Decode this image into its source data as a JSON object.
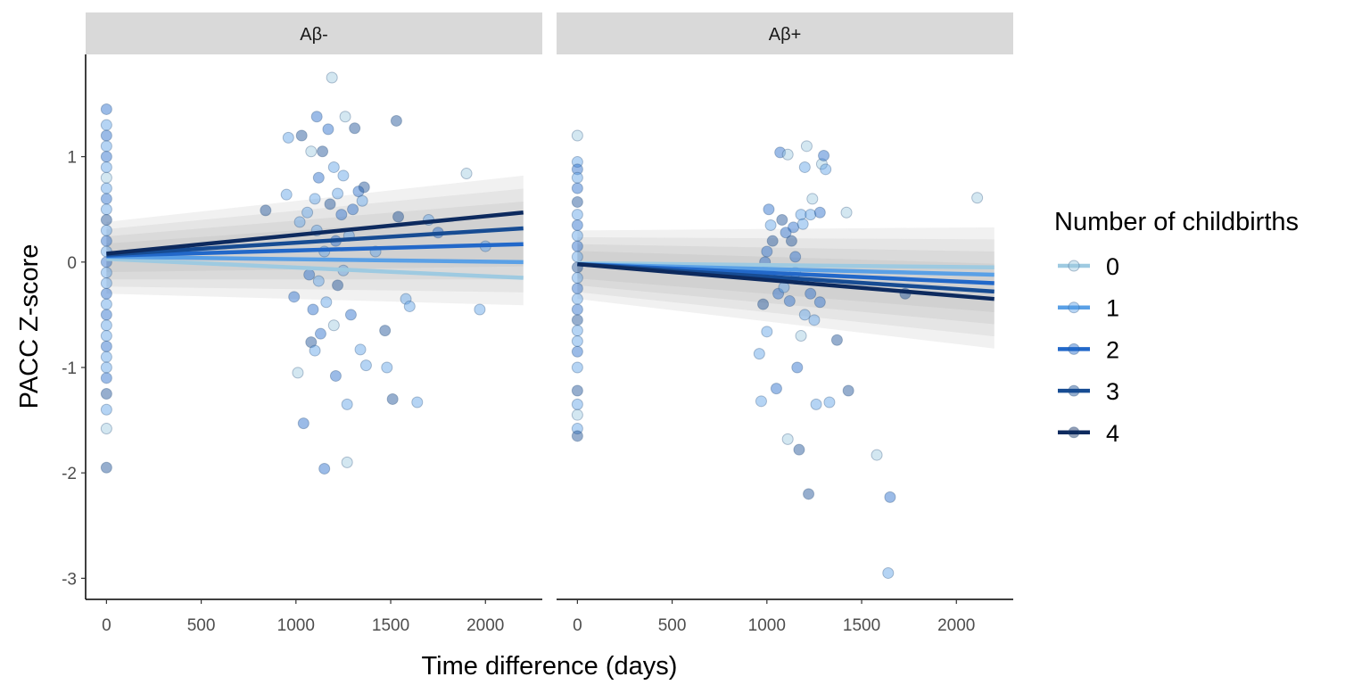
{
  "chart_data": {
    "type": "scatter",
    "xlabel": "Time difference (days)",
    "ylabel": "PACC Z-score",
    "xlim": [
      -110,
      2300
    ],
    "ylim": [
      -3.2,
      1.97
    ],
    "x_ticks": [
      0,
      500,
      1000,
      1500,
      2000
    ],
    "x_tick_labels": [
      "0",
      "500",
      "1000",
      "1500",
      "2000"
    ],
    "y_ticks": [
      -3,
      -2,
      -1,
      0,
      1
    ],
    "y_tick_labels": [
      "-3",
      "-2",
      "-1",
      "0",
      "1"
    ],
    "grid": false,
    "legend": {
      "title": "Number of childbirths",
      "position": "right",
      "entries": [
        "0",
        "1",
        "2",
        "3",
        "4"
      ]
    },
    "colors": [
      "#9ecae1",
      "#5aa0e6",
      "#2268c9",
      "#174c93",
      "#0d2a5e"
    ],
    "panels": [
      {
        "label": "Aβ-",
        "lines": [
          {
            "group": "0",
            "x": [
              0,
              2200
            ],
            "y": [
              0.03,
              -0.15
            ]
          },
          {
            "group": "1",
            "x": [
              0,
              2200
            ],
            "y": [
              0.05,
              0.0
            ]
          },
          {
            "group": "2",
            "x": [
              0,
              2200
            ],
            "y": [
              0.06,
              0.17
            ]
          },
          {
            "group": "3",
            "x": [
              0,
              2200
            ],
            "y": [
              0.07,
              0.32
            ]
          },
          {
            "group": "4",
            "x": [
              0,
              2200
            ],
            "y": [
              0.08,
              0.47
            ]
          }
        ],
        "ribbon": {
          "x": [
            0,
            2200
          ],
          "upper": [
            0.38,
            0.82
          ],
          "lower": [
            -0.3,
            -0.41
          ]
        },
        "points": [
          {
            "x": 0,
            "y": 1.45,
            "g": 2
          },
          {
            "x": 0,
            "y": 1.3,
            "g": 1
          },
          {
            "x": 0,
            "y": 1.2,
            "g": 2
          },
          {
            "x": 0,
            "y": 1.1,
            "g": 1
          },
          {
            "x": 0,
            "y": 1.0,
            "g": 2
          },
          {
            "x": 0,
            "y": 0.9,
            "g": 1
          },
          {
            "x": 0,
            "y": 0.8,
            "g": 0
          },
          {
            "x": 0,
            "y": 0.7,
            "g": 1
          },
          {
            "x": 0,
            "y": 0.6,
            "g": 2
          },
          {
            "x": 0,
            "y": 0.5,
            "g": 1
          },
          {
            "x": 0,
            "y": 0.4,
            "g": 3
          },
          {
            "x": 0,
            "y": 0.3,
            "g": 1
          },
          {
            "x": 0,
            "y": 0.2,
            "g": 2
          },
          {
            "x": 0,
            "y": 0.1,
            "g": 1
          },
          {
            "x": 0,
            "y": 0.0,
            "g": 2
          },
          {
            "x": 0,
            "y": -0.1,
            "g": 1
          },
          {
            "x": 0,
            "y": -0.2,
            "g": 1
          },
          {
            "x": 0,
            "y": -0.3,
            "g": 2
          },
          {
            "x": 0,
            "y": -0.4,
            "g": 1
          },
          {
            "x": 0,
            "y": -0.5,
            "g": 2
          },
          {
            "x": 0,
            "y": -0.6,
            "g": 1
          },
          {
            "x": 0,
            "y": -0.7,
            "g": 1
          },
          {
            "x": 0,
            "y": -0.8,
            "g": 2
          },
          {
            "x": 0,
            "y": -0.9,
            "g": 1
          },
          {
            "x": 0,
            "y": -1.0,
            "g": 1
          },
          {
            "x": 0,
            "y": -1.1,
            "g": 2
          },
          {
            "x": 0,
            "y": -1.25,
            "g": 3
          },
          {
            "x": 0,
            "y": -1.4,
            "g": 1
          },
          {
            "x": 0,
            "y": -1.58,
            "g": 0
          },
          {
            "x": 0,
            "y": -1.95,
            "g": 3
          },
          {
            "x": 840,
            "y": 0.49,
            "g": 3
          },
          {
            "x": 950,
            "y": 0.64,
            "g": 1
          },
          {
            "x": 960,
            "y": 1.18,
            "g": 1
          },
          {
            "x": 990,
            "y": -0.33,
            "g": 2
          },
          {
            "x": 1010,
            "y": -1.05,
            "g": 0
          },
          {
            "x": 1020,
            "y": 0.38,
            "g": 1
          },
          {
            "x": 1030,
            "y": 1.2,
            "g": 3
          },
          {
            "x": 1040,
            "y": -1.53,
            "g": 2
          },
          {
            "x": 1060,
            "y": 0.47,
            "g": 1
          },
          {
            "x": 1070,
            "y": -0.12,
            "g": 2
          },
          {
            "x": 1080,
            "y": 1.05,
            "g": 0
          },
          {
            "x": 1080,
            "y": -0.76,
            "g": 3
          },
          {
            "x": 1090,
            "y": -0.45,
            "g": 2
          },
          {
            "x": 1100,
            "y": 0.6,
            "g": 1
          },
          {
            "x": 1100,
            "y": -0.84,
            "g": 1
          },
          {
            "x": 1110,
            "y": 1.38,
            "g": 2
          },
          {
            "x": 1110,
            "y": 0.3,
            "g": 1
          },
          {
            "x": 1120,
            "y": 0.8,
            "g": 2
          },
          {
            "x": 1120,
            "y": -0.18,
            "g": 1
          },
          {
            "x": 1130,
            "y": -0.68,
            "g": 2
          },
          {
            "x": 1140,
            "y": 1.05,
            "g": 3
          },
          {
            "x": 1150,
            "y": -1.96,
            "g": 2
          },
          {
            "x": 1150,
            "y": 0.1,
            "g": 1
          },
          {
            "x": 1160,
            "y": -0.38,
            "g": 1
          },
          {
            "x": 1170,
            "y": 1.26,
            "g": 2
          },
          {
            "x": 1180,
            "y": 0.55,
            "g": 3
          },
          {
            "x": 1190,
            "y": 1.75,
            "g": 0
          },
          {
            "x": 1200,
            "y": 0.9,
            "g": 1
          },
          {
            "x": 1200,
            "y": -0.6,
            "g": 0
          },
          {
            "x": 1210,
            "y": -1.08,
            "g": 2
          },
          {
            "x": 1210,
            "y": 0.2,
            "g": 2
          },
          {
            "x": 1220,
            "y": 0.65,
            "g": 1
          },
          {
            "x": 1220,
            "y": -0.22,
            "g": 3
          },
          {
            "x": 1240,
            "y": 0.45,
            "g": 2
          },
          {
            "x": 1250,
            "y": 0.82,
            "g": 1
          },
          {
            "x": 1250,
            "y": -0.08,
            "g": 1
          },
          {
            "x": 1260,
            "y": 1.38,
            "g": 0
          },
          {
            "x": 1270,
            "y": -1.35,
            "g": 1
          },
          {
            "x": 1270,
            "y": -1.9,
            "g": 0
          },
          {
            "x": 1280,
            "y": 0.25,
            "g": 1
          },
          {
            "x": 1290,
            "y": -0.5,
            "g": 2
          },
          {
            "x": 1300,
            "y": 0.5,
            "g": 2
          },
          {
            "x": 1310,
            "y": 1.27,
            "g": 3
          },
          {
            "x": 1330,
            "y": 0.67,
            "g": 2
          },
          {
            "x": 1340,
            "y": -0.83,
            "g": 1
          },
          {
            "x": 1350,
            "y": 0.58,
            "g": 1
          },
          {
            "x": 1360,
            "y": 0.71,
            "g": 3
          },
          {
            "x": 1370,
            "y": -0.98,
            "g": 1
          },
          {
            "x": 1420,
            "y": 0.1,
            "g": 1
          },
          {
            "x": 1470,
            "y": -0.65,
            "g": 3
          },
          {
            "x": 1480,
            "y": -1.0,
            "g": 1
          },
          {
            "x": 1510,
            "y": -1.3,
            "g": 3
          },
          {
            "x": 1530,
            "y": 1.34,
            "g": 3
          },
          {
            "x": 1540,
            "y": 0.43,
            "g": 3
          },
          {
            "x": 1580,
            "y": -0.35,
            "g": 1
          },
          {
            "x": 1600,
            "y": -0.42,
            "g": 1
          },
          {
            "x": 1640,
            "y": -1.33,
            "g": 1
          },
          {
            "x": 1700,
            "y": 0.4,
            "g": 1
          },
          {
            "x": 1750,
            "y": 0.28,
            "g": 2
          },
          {
            "x": 1900,
            "y": 0.84,
            "g": 0
          },
          {
            "x": 1970,
            "y": -0.45,
            "g": 1
          },
          {
            "x": 2000,
            "y": 0.15,
            "g": 1
          }
        ]
      },
      {
        "label": "Aβ+",
        "lines": [
          {
            "group": "0",
            "x": [
              0,
              2200
            ],
            "y": [
              -0.01,
              -0.05
            ]
          },
          {
            "group": "1",
            "x": [
              0,
              2200
            ],
            "y": [
              -0.02,
              -0.12
            ]
          },
          {
            "group": "2",
            "x": [
              0,
              2200
            ],
            "y": [
              -0.02,
              -0.2
            ]
          },
          {
            "group": "3",
            "x": [
              0,
              2200
            ],
            "y": [
              -0.02,
              -0.28
            ]
          },
          {
            "group": "4",
            "x": [
              0,
              2200
            ],
            "y": [
              -0.02,
              -0.35
            ]
          }
        ],
        "ribbon": {
          "x": [
            0,
            2200
          ],
          "upper": [
            0.3,
            0.33
          ],
          "lower": [
            -0.35,
            -0.82
          ]
        },
        "points": [
          {
            "x": 0,
            "y": 1.2,
            "g": 0
          },
          {
            "x": 0,
            "y": 0.95,
            "g": 1
          },
          {
            "x": 0,
            "y": 0.88,
            "g": 2
          },
          {
            "x": 0,
            "y": 0.8,
            "g": 1
          },
          {
            "x": 0,
            "y": 0.7,
            "g": 2
          },
          {
            "x": 0,
            "y": 0.57,
            "g": 3
          },
          {
            "x": 0,
            "y": 0.45,
            "g": 1
          },
          {
            "x": 0,
            "y": 0.35,
            "g": 2
          },
          {
            "x": 0,
            "y": 0.25,
            "g": 1
          },
          {
            "x": 0,
            "y": 0.15,
            "g": 2
          },
          {
            "x": 0,
            "y": 0.05,
            "g": 1
          },
          {
            "x": 0,
            "y": -0.05,
            "g": 3
          },
          {
            "x": 0,
            "y": -0.15,
            "g": 1
          },
          {
            "x": 0,
            "y": -0.25,
            "g": 2
          },
          {
            "x": 0,
            "y": -0.35,
            "g": 1
          },
          {
            "x": 0,
            "y": -0.45,
            "g": 2
          },
          {
            "x": 0,
            "y": -0.55,
            "g": 3
          },
          {
            "x": 0,
            "y": -0.65,
            "g": 1
          },
          {
            "x": 0,
            "y": -0.75,
            "g": 1
          },
          {
            "x": 0,
            "y": -0.85,
            "g": 2
          },
          {
            "x": 0,
            "y": -1.0,
            "g": 1
          },
          {
            "x": 0,
            "y": -1.22,
            "g": 3
          },
          {
            "x": 0,
            "y": -1.35,
            "g": 1
          },
          {
            "x": 0,
            "y": -1.45,
            "g": 0
          },
          {
            "x": 0,
            "y": -1.58,
            "g": 1
          },
          {
            "x": 0,
            "y": -1.65,
            "g": 3
          },
          {
            "x": 960,
            "y": -0.87,
            "g": 1
          },
          {
            "x": 970,
            "y": -1.32,
            "g": 1
          },
          {
            "x": 980,
            "y": -0.4,
            "g": 3
          },
          {
            "x": 990,
            "y": 0.0,
            "g": 2
          },
          {
            "x": 1000,
            "y": -0.66,
            "g": 1
          },
          {
            "x": 1000,
            "y": 0.1,
            "g": 2
          },
          {
            "x": 1010,
            "y": 0.5,
            "g": 2
          },
          {
            "x": 1020,
            "y": 0.35,
            "g": 1
          },
          {
            "x": 1030,
            "y": 0.2,
            "g": 3
          },
          {
            "x": 1050,
            "y": -1.2,
            "g": 2
          },
          {
            "x": 1060,
            "y": -0.3,
            "g": 2
          },
          {
            "x": 1070,
            "y": 1.04,
            "g": 2
          },
          {
            "x": 1080,
            "y": 0.4,
            "g": 3
          },
          {
            "x": 1090,
            "y": -0.24,
            "g": 1
          },
          {
            "x": 1100,
            "y": 0.28,
            "g": 2
          },
          {
            "x": 1110,
            "y": 1.02,
            "g": 0
          },
          {
            "x": 1110,
            "y": -1.68,
            "g": 0
          },
          {
            "x": 1120,
            "y": -0.37,
            "g": 2
          },
          {
            "x": 1130,
            "y": 0.2,
            "g": 3
          },
          {
            "x": 1140,
            "y": 0.33,
            "g": 2
          },
          {
            "x": 1150,
            "y": -0.1,
            "g": 1
          },
          {
            "x": 1150,
            "y": 0.05,
            "g": 2
          },
          {
            "x": 1160,
            "y": -1.0,
            "g": 2
          },
          {
            "x": 1170,
            "y": -1.78,
            "g": 3
          },
          {
            "x": 1180,
            "y": 0.45,
            "g": 1
          },
          {
            "x": 1180,
            "y": -0.7,
            "g": 0
          },
          {
            "x": 1190,
            "y": 0.36,
            "g": 1
          },
          {
            "x": 1200,
            "y": 0.9,
            "g": 1
          },
          {
            "x": 1200,
            "y": -0.5,
            "g": 1
          },
          {
            "x": 1210,
            "y": 1.1,
            "g": 0
          },
          {
            "x": 1220,
            "y": -2.2,
            "g": 3
          },
          {
            "x": 1230,
            "y": 0.45,
            "g": 1
          },
          {
            "x": 1230,
            "y": -0.3,
            "g": 2
          },
          {
            "x": 1240,
            "y": 0.6,
            "g": 0
          },
          {
            "x": 1250,
            "y": -0.55,
            "g": 1
          },
          {
            "x": 1260,
            "y": -1.35,
            "g": 1
          },
          {
            "x": 1280,
            "y": 0.47,
            "g": 2
          },
          {
            "x": 1280,
            "y": -0.38,
            "g": 2
          },
          {
            "x": 1290,
            "y": 0.93,
            "g": 0
          },
          {
            "x": 1300,
            "y": 1.01,
            "g": 2
          },
          {
            "x": 1310,
            "y": 0.88,
            "g": 1
          },
          {
            "x": 1330,
            "y": -1.33,
            "g": 1
          },
          {
            "x": 1370,
            "y": -0.74,
            "g": 3
          },
          {
            "x": 1420,
            "y": 0.47,
            "g": 0
          },
          {
            "x": 1430,
            "y": -1.22,
            "g": 3
          },
          {
            "x": 1580,
            "y": -1.83,
            "g": 0
          },
          {
            "x": 1640,
            "y": -2.95,
            "g": 1
          },
          {
            "x": 1650,
            "y": -2.23,
            "g": 2
          },
          {
            "x": 1730,
            "y": -0.3,
            "g": 3
          },
          {
            "x": 2110,
            "y": 0.61,
            "g": 0
          }
        ]
      }
    ]
  }
}
